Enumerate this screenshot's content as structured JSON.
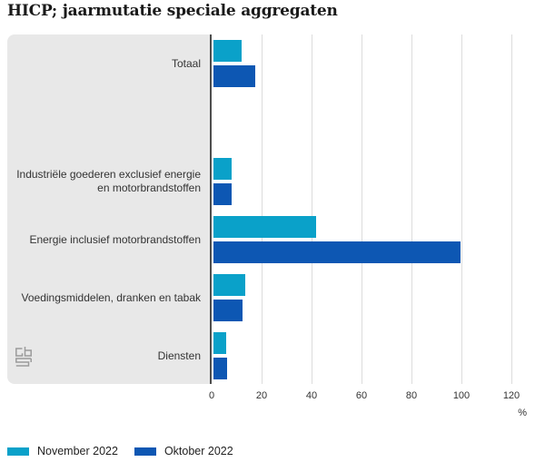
{
  "title": "HICP; jaarmutatie speciale aggregaten",
  "colors": {
    "panel": "#e8e8e8",
    "axis": "#4d4d4d",
    "grid": "#dcdcdc",
    "text": "#333333",
    "title_text": "#1a1a1a",
    "logo": "#9b9b9b",
    "november": "#0aa1c9",
    "oktober": "#0d57b3"
  },
  "logo_name": "cbs-logo",
  "chart_data": {
    "type": "bar",
    "orientation": "horizontal",
    "title": "HICP; jaarmutatie speciale aggregaten",
    "categories": [
      "Totaal",
      "Industriële goederen exclusief energie en motorbrandstoffen",
      "Energie inclusief motorbrandstoffen",
      "Voedingsmiddelen, dranken en tabak",
      "Diensten"
    ],
    "series": [
      {
        "name": "November 2022",
        "color": "#0aa1c9",
        "values": [
          11.3,
          7.1,
          41.0,
          12.8,
          5.1
        ]
      },
      {
        "name": "Oktober 2022",
        "color": "#0d57b3",
        "values": [
          16.8,
          7.4,
          99.0,
          11.6,
          5.6
        ]
      }
    ],
    "xticks": [
      0,
      20,
      40,
      60,
      80,
      100,
      120
    ],
    "xlim": [
      0,
      120
    ],
    "unit": "%",
    "grid": "vertical",
    "legend_position": "bottom",
    "gap_after_first_category": true
  }
}
